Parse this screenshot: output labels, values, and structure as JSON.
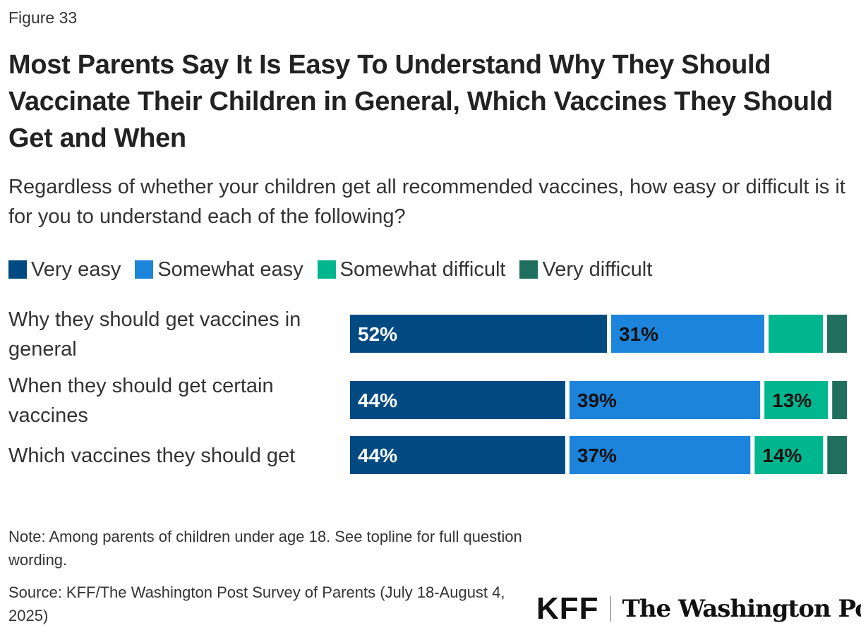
{
  "figure_label": "Figure 33",
  "footer": {
    "note": "Note: Among parents of children under age 18. See topline for full question wording.",
    "source": "Source: KFF/The Washington Post Survey of Parents (July 18-August 4, 2025)"
  },
  "logos": {
    "kff": "KFF",
    "wapo": "The Washington Post"
  },
  "chart_data": {
    "type": "bar",
    "orientation": "horizontal",
    "stacked": true,
    "title": "Most Parents Say It Is Easy To Understand Why They Should Vaccinate Their Children in General, Which Vaccines They Should Get and When",
    "subtitle": "Regardless of whether your children get all recommended vaccines, how easy or difficult is it for you to understand each of the following?",
    "legend_position": "top-left",
    "grid": false,
    "xlim": [
      0,
      100
    ],
    "categories": [
      "Why they should get vaccines in general",
      "When they should get certain vaccines",
      "Which vaccines they should get"
    ],
    "series": [
      {
        "name": "Very easy",
        "color": "#004a82",
        "label_color": "#ffffff",
        "values": [
          52,
          44,
          44
        ],
        "labels": [
          "52%",
          "44%",
          "44%"
        ]
      },
      {
        "name": "Somewhat easy",
        "color": "#1d84dc",
        "label_color": "#111111",
        "values": [
          31,
          39,
          37
        ],
        "labels": [
          "31%",
          "39%",
          "37%"
        ]
      },
      {
        "name": "Somewhat difficult",
        "color": "#00b68f",
        "label_color": "#111111",
        "values": [
          11,
          13,
          14
        ],
        "labels": [
          "",
          "13%",
          "14%"
        ]
      },
      {
        "name": "Very difficult",
        "color": "#1f6e5e",
        "label_color": "#ffffff",
        "values": [
          4,
          3,
          4
        ],
        "labels": [
          "",
          "",
          ""
        ]
      }
    ]
  }
}
